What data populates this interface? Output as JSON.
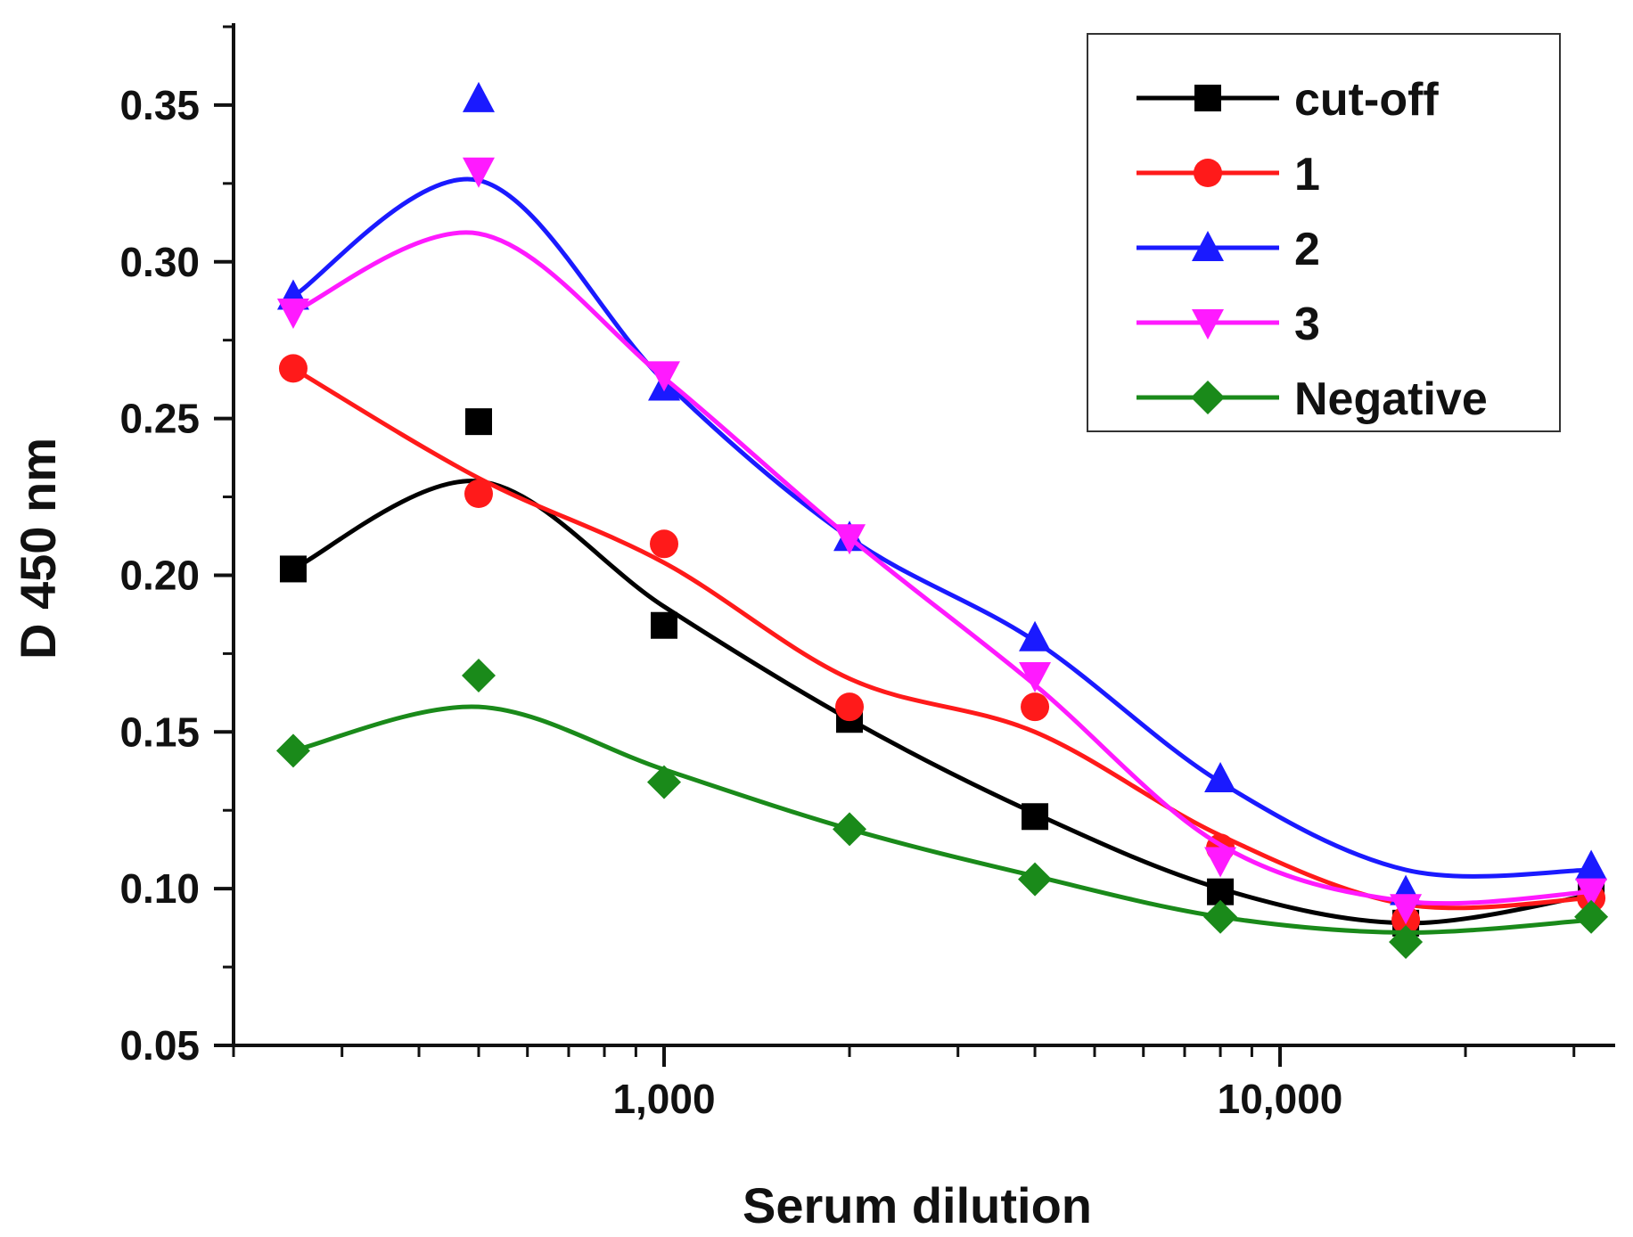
{
  "chart_data": {
    "type": "line",
    "title": "",
    "xlabel": "Serum dilution",
    "ylabel": "D 450 nm",
    "xscale": "log",
    "xlim": [
      200,
      35000
    ],
    "ylim": [
      0.05,
      0.375
    ],
    "xticks": [
      {
        "value": 1000,
        "label": "1,000"
      },
      {
        "value": 10000,
        "label": "10,000"
      }
    ],
    "yticks": [
      {
        "value": 0.05,
        "label": "0.05"
      },
      {
        "value": 0.1,
        "label": "0.10"
      },
      {
        "value": 0.15,
        "label": "0.15"
      },
      {
        "value": 0.2,
        "label": "0.20"
      },
      {
        "value": 0.25,
        "label": "0.25"
      },
      {
        "value": 0.3,
        "label": "0.30"
      },
      {
        "value": 0.35,
        "label": "0.35"
      }
    ],
    "x": [
      250,
      500,
      1000,
      2000,
      4000,
      8000,
      16000,
      32000
    ],
    "legend_position": "top-right",
    "series": [
      {
        "name": "cut-off",
        "color": "#000000",
        "marker": "square",
        "values": [
          0.202,
          0.249,
          0.184,
          0.154,
          0.123,
          0.099,
          0.089,
          0.1
        ],
        "fit": [
          0.202,
          0.23,
          0.19,
          0.154,
          0.124,
          0.1,
          0.089,
          0.098
        ]
      },
      {
        "name": "1",
        "color": "#ff1a1a",
        "marker": "circle",
        "values": [
          0.266,
          0.226,
          0.21,
          0.158,
          0.158,
          0.113,
          0.09,
          0.097
        ],
        "fit": [
          0.266,
          0.231,
          0.204,
          0.167,
          0.15,
          0.117,
          0.095,
          0.097
        ]
      },
      {
        "name": "2",
        "color": "#1a1aff",
        "marker": "triangle-up",
        "values": [
          0.289,
          0.352,
          0.26,
          0.212,
          0.18,
          0.135,
          0.099,
          0.107
        ],
        "fit": [
          0.289,
          0.326,
          0.262,
          0.212,
          0.179,
          0.134,
          0.106,
          0.106
        ]
      },
      {
        "name": "3",
        "color": "#ff1aff",
        "marker": "triangle-down",
        "values": [
          0.284,
          0.329,
          0.264,
          0.212,
          0.168,
          0.109,
          0.094,
          0.099
        ],
        "fit": [
          0.284,
          0.309,
          0.263,
          0.212,
          0.165,
          0.114,
          0.096,
          0.099
        ]
      },
      {
        "name": "Negative",
        "color": "#1a8a1a",
        "marker": "diamond",
        "values": [
          0.144,
          0.168,
          0.134,
          0.119,
          0.103,
          0.091,
          0.083,
          0.091
        ],
        "fit": [
          0.144,
          0.158,
          0.138,
          0.119,
          0.104,
          0.091,
          0.086,
          0.09
        ]
      }
    ]
  }
}
